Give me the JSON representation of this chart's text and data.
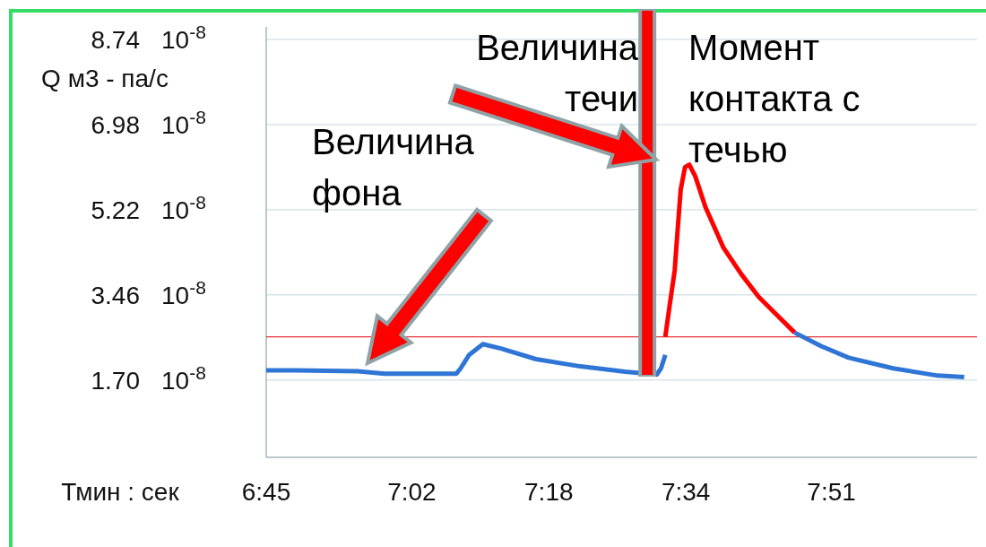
{
  "chart_data": {
    "type": "line",
    "xlabel": "Тмин : сек",
    "ylabel": "Q м3 - па/с",
    "xlim": [
      405,
      488
    ],
    "xticks": [
      {
        "value": 405,
        "label": "6:45"
      },
      {
        "value": 422,
        "label": "7:02"
      },
      {
        "value": 438,
        "label": "7:18"
      },
      {
        "value": 454,
        "label": "7:34"
      },
      {
        "value": 471,
        "label": "7:51"
      }
    ],
    "ylim": [
      0.1,
      9.0
    ],
    "yticks": [
      {
        "value": 1.7,
        "label": "1.70"
      },
      3.46,
      5.22,
      6.98,
      8.74
    ],
    "grid": "y",
    "marker": "none",
    "line_style": "solid",
    "series": [
      {
        "color": "#2f75d6",
        "x": [
          405.0,
          408.4,
          415.7,
          418.8,
          427.2,
          427.7,
          428.7,
          430.3,
          432.4,
          436.5,
          441.7,
          446.9,
          450.6,
          451.1,
          451.6
        ],
        "values": [
          1.9,
          1.9,
          1.88,
          1.83,
          1.83,
          1.94,
          2.22,
          2.44,
          2.35,
          2.13,
          1.98,
          1.87,
          1.81,
          1.94,
          2.22
        ]
      },
      {
        "color": "#ff0000",
        "x": [
          451.6,
          452.1,
          452.7,
          453.0,
          453.4,
          453.9,
          454.4,
          455.1,
          456.3,
          458.4,
          460.5,
          462.5,
          464.6,
          466.7
        ],
        "values": [
          2.59,
          3.23,
          3.97,
          4.71,
          5.64,
          6.1,
          6.15,
          5.91,
          5.27,
          4.43,
          3.88,
          3.42,
          3.05,
          2.68
        ]
      },
      {
        "color": "#2f75d6",
        "x": [
          466.7,
          469.8,
          473.0,
          478.2,
          483.4,
          486.5
        ],
        "values": [
          2.68,
          2.4,
          2.16,
          1.94,
          1.79,
          1.76
        ]
      }
    ],
    "ref_lines": [
      {
        "axis": "y",
        "value": 2.59,
        "color": "#e8333a"
      },
      {
        "axis": "x",
        "value": 449.5,
        "color": "#ff0000"
      }
    ],
    "annotations": [
      "Величина фона",
      "Величина течи",
      "Момент контакта с течью",
      "10$^{-8}$",
      "10$^{-8}$",
      "10$^{-8}$",
      "10$^{-8}$",
      "10$^{-8}$"
    ]
  }
}
